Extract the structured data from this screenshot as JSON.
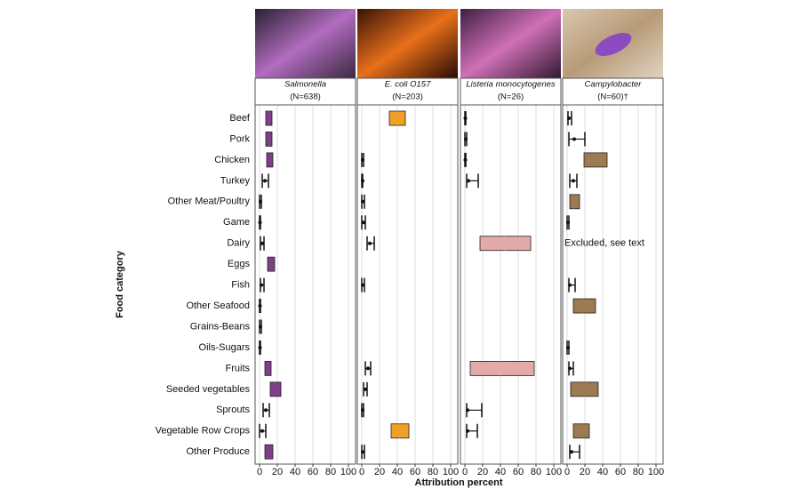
{
  "chart_data": {
    "type": "interval",
    "xlabel": "Attribution percent",
    "ylabel": "Food category",
    "categories": [
      "Beef",
      "Pork",
      "Chicken",
      "Turkey",
      "Other Meat/Poultry",
      "Game",
      "Dairy",
      "Eggs",
      "Fish",
      "Other Seafood",
      "Grains-Beans",
      "Oils-Sugars",
      "Fruits",
      "Seeded vegetables",
      "Sprouts",
      "Vegetable Row Crops",
      "Other Produce"
    ],
    "xlim": [
      0,
      100
    ],
    "xticks": [
      0,
      20,
      40,
      60,
      80,
      100
    ],
    "grid": true,
    "panels": [
      {
        "name": "Salmonella",
        "n_label": "(N=638)",
        "color": "#7d3f85",
        "values": [
          10,
          10,
          11,
          6,
          1,
          0.5,
          3,
          12,
          2,
          0.5,
          1,
          0.5,
          9,
          17,
          7,
          3,
          11
        ],
        "lower": [
          7,
          7,
          8,
          3,
          0,
          0,
          1,
          9,
          1,
          0,
          0,
          0,
          6,
          12,
          4,
          0,
          6
        ],
        "upper": [
          14,
          14,
          15,
          10,
          2,
          1,
          5,
          17,
          5,
          1,
          2,
          1,
          13,
          24,
          11,
          7,
          15
        ],
        "boxed": [
          true,
          true,
          true,
          false,
          false,
          false,
          false,
          true,
          false,
          false,
          false,
          false,
          true,
          true,
          false,
          false,
          true
        ]
      },
      {
        "name": "E. coli O157",
        "n_label": "(N=203)",
        "color": "#eda126",
        "values": [
          40,
          null,
          1,
          1,
          1,
          2,
          9,
          null,
          1,
          null,
          null,
          null,
          7,
          4,
          1,
          42,
          1
        ],
        "lower": [
          31,
          null,
          0,
          0,
          0,
          0,
          6,
          null,
          0,
          null,
          null,
          null,
          4,
          2,
          0,
          33,
          0
        ],
        "upper": [
          49,
          null,
          2,
          1,
          3,
          4,
          14,
          null,
          3,
          null,
          null,
          null,
          10,
          6,
          2,
          53,
          3
        ],
        "boxed": [
          true,
          false,
          false,
          false,
          false,
          false,
          false,
          false,
          false,
          false,
          false,
          false,
          false,
          false,
          false,
          true,
          false
        ]
      },
      {
        "name": "Listeria monocytogenes",
        "n_label": "(N=26)",
        "color": "#e2aaa8",
        "values": [
          0.5,
          1,
          0.5,
          4,
          null,
          null,
          45,
          null,
          null,
          null,
          null,
          null,
          40,
          null,
          3,
          3,
          null
        ],
        "lower": [
          0,
          0,
          0,
          2,
          null,
          null,
          17,
          null,
          null,
          null,
          null,
          null,
          6,
          null,
          2,
          2,
          null
        ],
        "upper": [
          1,
          2,
          1,
          15,
          null,
          null,
          74,
          null,
          null,
          null,
          null,
          null,
          78,
          null,
          19,
          14,
          null
        ],
        "boxed": [
          false,
          false,
          false,
          false,
          false,
          false,
          true,
          false,
          false,
          false,
          false,
          false,
          true,
          false,
          false,
          false,
          false
        ]
      },
      {
        "name": "Campylobacter",
        "n_label": "(N=60)†",
        "color": "#9c7a52",
        "values": [
          2,
          8,
          30,
          7,
          8,
          1,
          null,
          null,
          3,
          18,
          null,
          1,
          3,
          20,
          null,
          15,
          5
        ],
        "lower": [
          1,
          2,
          19,
          3,
          3,
          0,
          null,
          null,
          2,
          7,
          null,
          0,
          2,
          4,
          null,
          7,
          3
        ],
        "upper": [
          5,
          20,
          45,
          11,
          14,
          2,
          null,
          null,
          9,
          32,
          null,
          2,
          7,
          35,
          null,
          25,
          14
        ],
        "boxed": [
          false,
          false,
          true,
          false,
          true,
          false,
          false,
          false,
          false,
          true,
          false,
          false,
          false,
          true,
          false,
          true,
          false
        ],
        "annotation": {
          "category": "Dairy",
          "text": "Excluded, see text"
        }
      }
    ]
  }
}
